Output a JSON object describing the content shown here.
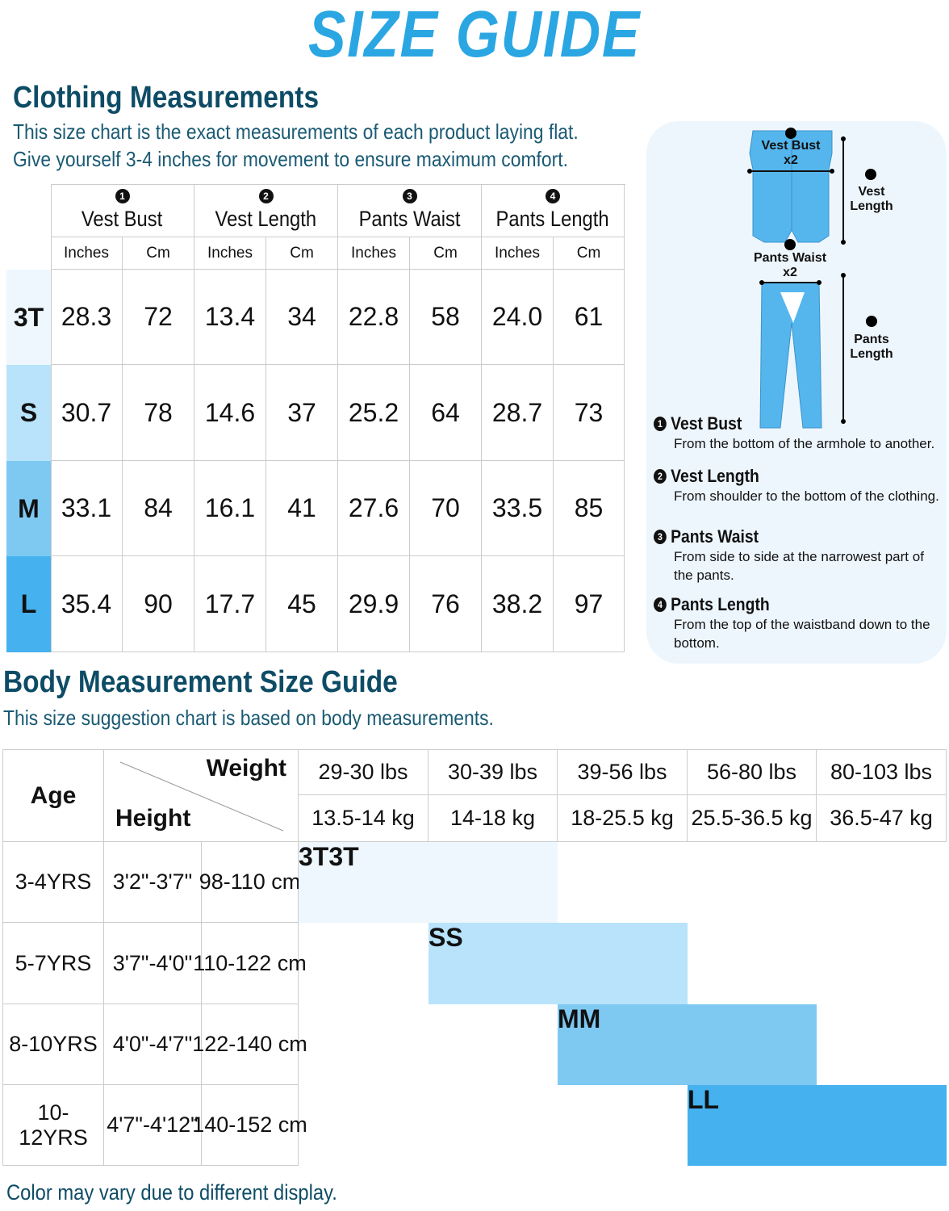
{
  "title": "SIZE GUIDE",
  "clothing": {
    "heading": "Clothing Measurements",
    "desc": [
      "This size chart is the exact measurements of each product laying flat.",
      "Give yourself 3-4 inches for movement to ensure maximum comfort."
    ],
    "columns": [
      {
        "num": "1",
        "label": "Vest Bust"
      },
      {
        "num": "2",
        "label": "Vest Length"
      },
      {
        "num": "3",
        "label": "Pants Waist"
      },
      {
        "num": "4",
        "label": "Pants Length"
      }
    ],
    "units": [
      "Inches",
      "Cm"
    ],
    "rows": [
      {
        "size": "3T",
        "values": [
          "28.3",
          "72",
          "13.4",
          "34",
          "22.8",
          "58",
          "24.0",
          "61"
        ]
      },
      {
        "size": "S",
        "values": [
          "30.7",
          "78",
          "14.6",
          "37",
          "25.2",
          "64",
          "28.7",
          "73"
        ]
      },
      {
        "size": "M",
        "values": [
          "33.1",
          "84",
          "16.1",
          "41",
          "27.6",
          "70",
          "33.5",
          "85"
        ]
      },
      {
        "size": "L",
        "values": [
          "35.4",
          "90",
          "17.7",
          "45",
          "29.9",
          "76",
          "38.2",
          "97"
        ]
      }
    ]
  },
  "diagram": {
    "vest_bust": "Vest Bust",
    "x2": "x2",
    "vest_length": [
      "Vest",
      "Length"
    ],
    "pants_waist": "Pants Waist",
    "pants_length": [
      "Pants",
      "Length"
    ]
  },
  "notes": [
    {
      "num": "1",
      "title": "Vest Bust",
      "desc": "From the bottom of the armhole to another."
    },
    {
      "num": "2",
      "title": "Vest Length",
      "desc": "From shoulder to the bottom of the clothing."
    },
    {
      "num": "3",
      "title": "Pants Waist",
      "desc": "From side to side at the narrowest part of the pants."
    },
    {
      "num": "4",
      "title": "Pants Length",
      "desc": "From the top of the waistband down to the bottom."
    }
  ],
  "body": {
    "heading": "Body Measurement Size Guide",
    "desc": "This size suggestion chart is based on body measurements.",
    "age_label": "Age",
    "weight_label": "Weight",
    "height_label": "Height",
    "weights_lbs": [
      "29-30 lbs",
      "30-39 lbs",
      "39-56 lbs",
      "56-80 lbs",
      "80-103 lbs"
    ],
    "weights_kg": [
      "13.5-14 kg",
      "14-18 kg",
      "18-25.5 kg",
      "25.5-36.5 kg",
      "36.5-47 kg"
    ],
    "rows": [
      {
        "age": "3-4YRS",
        "ft": "3'2\"-3'7\"",
        "cm": "98-110 cm",
        "size": "3T",
        "start": 0
      },
      {
        "age": "5-7YRS",
        "ft": "3'7\"-4'0\"",
        "cm": "110-122 cm",
        "size": "S",
        "start": 1
      },
      {
        "age": "8-10YRS",
        "ft": "4'0\"-4'7\"",
        "cm": "122-140 cm",
        "size": "M",
        "start": 2
      },
      {
        "age": "10-12YRS",
        "ft": "4'7\"-4'12\"",
        "cm": "140-152 cm",
        "size": "L",
        "start": 3
      }
    ]
  },
  "size_colors": {
    "3T": "#eef7fd",
    "S": "#b8e3fb",
    "M": "#7ec9f2",
    "L": "#45b1ee"
  },
  "footer": "Color may vary due to different display."
}
